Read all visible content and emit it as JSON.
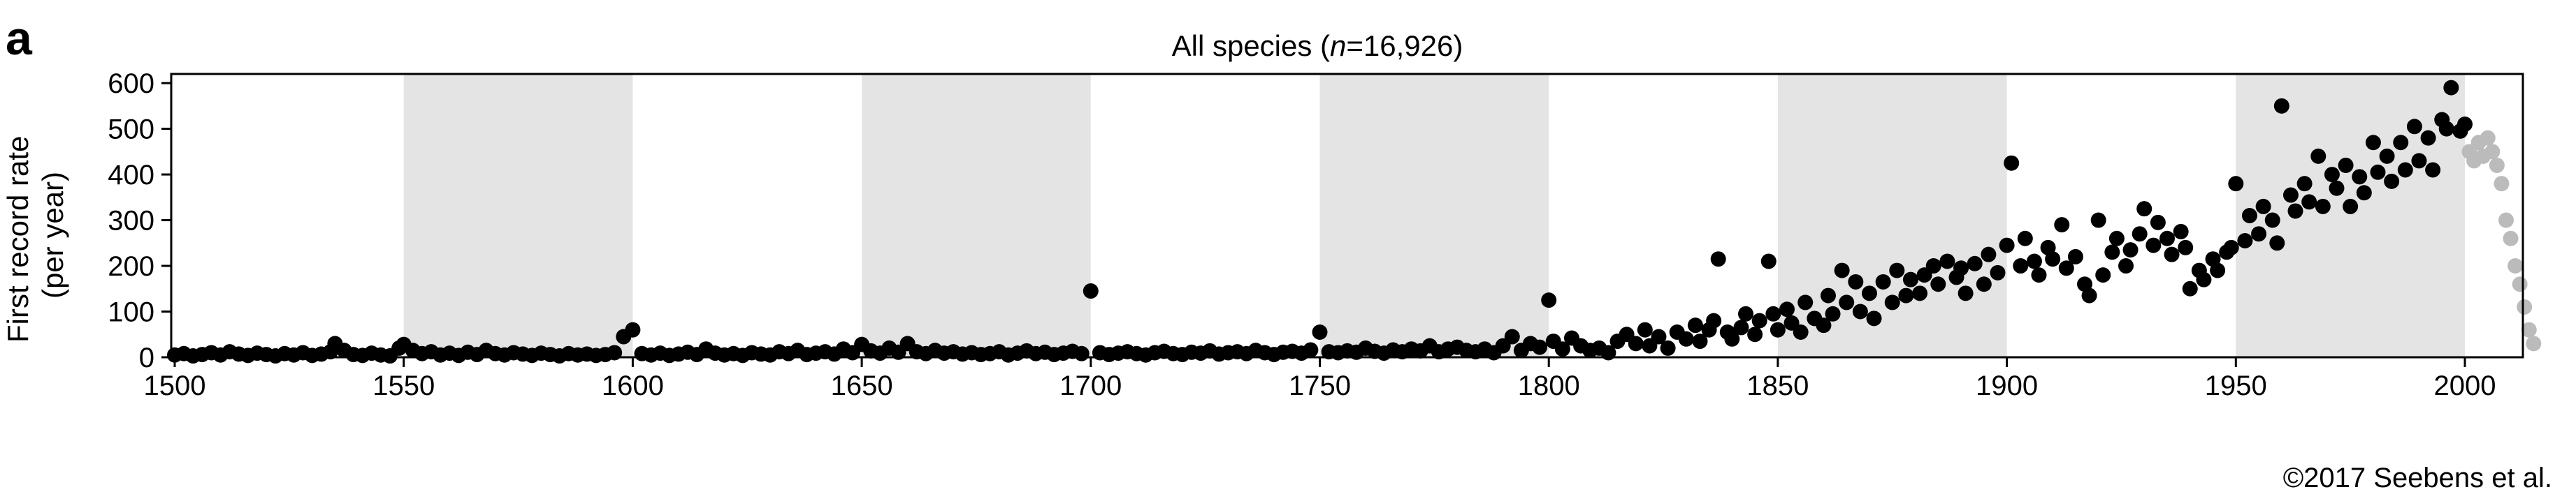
{
  "figure": {
    "panel_label": "a",
    "credit": "©2017 Seebens et al."
  },
  "chart_data": {
    "type": "scatter",
    "title_prefix": "All species (",
    "title_italic": "n",
    "title_suffix": "=16,926)",
    "ylabel_line1": "First record rate",
    "ylabel_line2": "(per year)",
    "xlabel": "",
    "xlim": [
      1500,
      2015
    ],
    "ylim": [
      0,
      620
    ],
    "xticks": [
      1500,
      1550,
      1600,
      1650,
      1700,
      1750,
      1800,
      1850,
      1900,
      1950,
      2000
    ],
    "yticks": [
      0,
      100,
      200,
      300,
      400,
      500,
      600
    ],
    "grid": false,
    "legend": false,
    "shaded_intervals": [
      [
        1550,
        1600
      ],
      [
        1650,
        1700
      ],
      [
        1750,
        1800
      ],
      [
        1850,
        1900
      ],
      [
        1950,
        2000
      ]
    ],
    "colors": {
      "points": "#000000",
      "recent_points": "#bbbbbb",
      "shading": "#e4e4e4",
      "axis": "#000000"
    },
    "series": [
      {
        "color": "#000000",
        "points": [
          [
            1500,
            5
          ],
          [
            1502,
            8
          ],
          [
            1504,
            3
          ],
          [
            1506,
            6
          ],
          [
            1508,
            10
          ],
          [
            1510,
            5
          ],
          [
            1512,
            12
          ],
          [
            1514,
            7
          ],
          [
            1516,
            4
          ],
          [
            1518,
            9
          ],
          [
            1520,
            6
          ],
          [
            1522,
            3
          ],
          [
            1524,
            8
          ],
          [
            1526,
            5
          ],
          [
            1528,
            10
          ],
          [
            1530,
            4
          ],
          [
            1532,
            7
          ],
          [
            1534,
            12
          ],
          [
            1535,
            30
          ],
          [
            1537,
            15
          ],
          [
            1539,
            6
          ],
          [
            1541,
            4
          ],
          [
            1543,
            9
          ],
          [
            1545,
            5
          ],
          [
            1547,
            3
          ],
          [
            1549,
            20
          ],
          [
            1550,
            28
          ],
          [
            1552,
            15
          ],
          [
            1554,
            8
          ],
          [
            1556,
            12
          ],
          [
            1558,
            5
          ],
          [
            1560,
            9
          ],
          [
            1562,
            4
          ],
          [
            1564,
            11
          ],
          [
            1566,
            6
          ],
          [
            1568,
            15
          ],
          [
            1570,
            8
          ],
          [
            1572,
            5
          ],
          [
            1574,
            10
          ],
          [
            1576,
            7
          ],
          [
            1578,
            4
          ],
          [
            1580,
            9
          ],
          [
            1582,
            6
          ],
          [
            1584,
            3
          ],
          [
            1586,
            8
          ],
          [
            1588,
            5
          ],
          [
            1590,
            7
          ],
          [
            1592,
            4
          ],
          [
            1594,
            6
          ],
          [
            1596,
            10
          ],
          [
            1598,
            45
          ],
          [
            1600,
            60
          ],
          [
            1602,
            8
          ],
          [
            1604,
            5
          ],
          [
            1606,
            9
          ],
          [
            1608,
            4
          ],
          [
            1610,
            7
          ],
          [
            1612,
            11
          ],
          [
            1614,
            6
          ],
          [
            1616,
            18
          ],
          [
            1618,
            9
          ],
          [
            1620,
            5
          ],
          [
            1622,
            8
          ],
          [
            1624,
            4
          ],
          [
            1626,
            10
          ],
          [
            1628,
            7
          ],
          [
            1630,
            5
          ],
          [
            1632,
            12
          ],
          [
            1634,
            8
          ],
          [
            1636,
            15
          ],
          [
            1638,
            6
          ],
          [
            1640,
            9
          ],
          [
            1642,
            12
          ],
          [
            1644,
            7
          ],
          [
            1646,
            18
          ],
          [
            1648,
            10
          ],
          [
            1650,
            28
          ],
          [
            1652,
            14
          ],
          [
            1654,
            9
          ],
          [
            1656,
            20
          ],
          [
            1658,
            11
          ],
          [
            1660,
            30
          ],
          [
            1662,
            12
          ],
          [
            1664,
            8
          ],
          [
            1666,
            15
          ],
          [
            1668,
            9
          ],
          [
            1670,
            12
          ],
          [
            1672,
            7
          ],
          [
            1674,
            10
          ],
          [
            1676,
            6
          ],
          [
            1678,
            8
          ],
          [
            1680,
            12
          ],
          [
            1682,
            5
          ],
          [
            1684,
            9
          ],
          [
            1686,
            14
          ],
          [
            1688,
            8
          ],
          [
            1690,
            11
          ],
          [
            1692,
            6
          ],
          [
            1694,
            9
          ],
          [
            1696,
            13
          ],
          [
            1698,
            8
          ],
          [
            1700,
            145
          ],
          [
            1702,
            10
          ],
          [
            1704,
            6
          ],
          [
            1706,
            9
          ],
          [
            1708,
            12
          ],
          [
            1710,
            8
          ],
          [
            1712,
            5
          ],
          [
            1714,
            10
          ],
          [
            1716,
            13
          ],
          [
            1718,
            8
          ],
          [
            1720,
            6
          ],
          [
            1722,
            11
          ],
          [
            1724,
            9
          ],
          [
            1726,
            14
          ],
          [
            1728,
            7
          ],
          [
            1730,
            10
          ],
          [
            1732,
            12
          ],
          [
            1734,
            8
          ],
          [
            1736,
            15
          ],
          [
            1738,
            10
          ],
          [
            1740,
            6
          ],
          [
            1742,
            11
          ],
          [
            1744,
            13
          ],
          [
            1746,
            9
          ],
          [
            1748,
            16
          ],
          [
            1750,
            55
          ],
          [
            1752,
            12
          ],
          [
            1754,
            10
          ],
          [
            1756,
            14
          ],
          [
            1758,
            11
          ],
          [
            1760,
            20
          ],
          [
            1762,
            13
          ],
          [
            1764,
            9
          ],
          [
            1766,
            16
          ],
          [
            1768,
            12
          ],
          [
            1770,
            18
          ],
          [
            1772,
            14
          ],
          [
            1774,
            25
          ],
          [
            1776,
            12
          ],
          [
            1778,
            18
          ],
          [
            1780,
            22
          ],
          [
            1782,
            15
          ],
          [
            1784,
            12
          ],
          [
            1786,
            18
          ],
          [
            1788,
            10
          ],
          [
            1790,
            25
          ],
          [
            1792,
            45
          ],
          [
            1794,
            15
          ],
          [
            1796,
            30
          ],
          [
            1798,
            22
          ],
          [
            1800,
            125
          ],
          [
            1801,
            35
          ],
          [
            1803,
            18
          ],
          [
            1805,
            42
          ],
          [
            1807,
            25
          ],
          [
            1809,
            15
          ],
          [
            1811,
            20
          ],
          [
            1813,
            10
          ],
          [
            1815,
            35
          ],
          [
            1817,
            50
          ],
          [
            1819,
            30
          ],
          [
            1821,
            60
          ],
          [
            1822,
            25
          ],
          [
            1824,
            45
          ],
          [
            1826,
            20
          ],
          [
            1828,
            55
          ],
          [
            1830,
            40
          ],
          [
            1832,
            70
          ],
          [
            1833,
            35
          ],
          [
            1835,
            60
          ],
          [
            1836,
            80
          ],
          [
            1837,
            215
          ],
          [
            1839,
            55
          ],
          [
            1840,
            40
          ],
          [
            1842,
            65
          ],
          [
            1843,
            95
          ],
          [
            1845,
            50
          ],
          [
            1846,
            80
          ],
          [
            1848,
            210
          ],
          [
            1849,
            95
          ],
          [
            1850,
            60
          ],
          [
            1852,
            105
          ],
          [
            1853,
            75
          ],
          [
            1855,
            55
          ],
          [
            1856,
            120
          ],
          [
            1858,
            85
          ],
          [
            1860,
            70
          ],
          [
            1861,
            135
          ],
          [
            1862,
            95
          ],
          [
            1864,
            190
          ],
          [
            1865,
            120
          ],
          [
            1867,
            165
          ],
          [
            1868,
            100
          ],
          [
            1870,
            140
          ],
          [
            1871,
            85
          ],
          [
            1873,
            165
          ],
          [
            1875,
            120
          ],
          [
            1876,
            190
          ],
          [
            1878,
            135
          ],
          [
            1879,
            170
          ],
          [
            1881,
            140
          ],
          [
            1882,
            180
          ],
          [
            1884,
            200
          ],
          [
            1885,
            160
          ],
          [
            1887,
            210
          ],
          [
            1889,
            175
          ],
          [
            1890,
            195
          ],
          [
            1891,
            140
          ],
          [
            1893,
            205
          ],
          [
            1895,
            160
          ],
          [
            1896,
            225
          ],
          [
            1898,
            185
          ],
          [
            1900,
            245
          ],
          [
            1901,
            425
          ],
          [
            1903,
            200
          ],
          [
            1904,
            260
          ],
          [
            1906,
            210
          ],
          [
            1907,
            180
          ],
          [
            1909,
            240
          ],
          [
            1910,
            215
          ],
          [
            1912,
            290
          ],
          [
            1913,
            195
          ],
          [
            1915,
            220
          ],
          [
            1917,
            160
          ],
          [
            1918,
            135
          ],
          [
            1920,
            300
          ],
          [
            1921,
            180
          ],
          [
            1923,
            230
          ],
          [
            1924,
            260
          ],
          [
            1926,
            200
          ],
          [
            1927,
            235
          ],
          [
            1929,
            270
          ],
          [
            1930,
            325
          ],
          [
            1932,
            245
          ],
          [
            1933,
            295
          ],
          [
            1935,
            260
          ],
          [
            1936,
            225
          ],
          [
            1938,
            275
          ],
          [
            1939,
            240
          ],
          [
            1940,
            150
          ],
          [
            1942,
            190
          ],
          [
            1943,
            170
          ],
          [
            1945,
            215
          ],
          [
            1946,
            190
          ],
          [
            1948,
            230
          ],
          [
            1949,
            240
          ],
          [
            1950,
            380
          ],
          [
            1952,
            255
          ],
          [
            1953,
            310
          ],
          [
            1955,
            270
          ],
          [
            1956,
            330
          ],
          [
            1958,
            300
          ],
          [
            1959,
            250
          ],
          [
            1960,
            550
          ],
          [
            1962,
            355
          ],
          [
            1963,
            320
          ],
          [
            1965,
            380
          ],
          [
            1966,
            340
          ],
          [
            1968,
            440
          ],
          [
            1969,
            330
          ],
          [
            1971,
            400
          ],
          [
            1972,
            370
          ],
          [
            1974,
            420
          ],
          [
            1975,
            330
          ],
          [
            1977,
            395
          ],
          [
            1978,
            360
          ],
          [
            1980,
            470
          ],
          [
            1981,
            405
          ],
          [
            1983,
            440
          ],
          [
            1984,
            385
          ],
          [
            1986,
            470
          ],
          [
            1987,
            410
          ],
          [
            1989,
            505
          ],
          [
            1990,
            430
          ],
          [
            1992,
            480
          ],
          [
            1993,
            410
          ],
          [
            1995,
            520
          ],
          [
            1996,
            500
          ],
          [
            1997,
            590
          ],
          [
            1999,
            495
          ],
          [
            2000,
            510
          ]
        ]
      },
      {
        "color": "#bbbbbb",
        "points": [
          [
            2001,
            450
          ],
          [
            2002,
            430
          ],
          [
            2003,
            470
          ],
          [
            2004,
            440
          ],
          [
            2005,
            480
          ],
          [
            2006,
            450
          ],
          [
            2007,
            420
          ],
          [
            2008,
            380
          ],
          [
            2009,
            300
          ],
          [
            2010,
            260
          ],
          [
            2011,
            200
          ],
          [
            2012,
            160
          ],
          [
            2013,
            110
          ],
          [
            2014,
            60
          ],
          [
            2015,
            30
          ]
        ]
      }
    ]
  }
}
